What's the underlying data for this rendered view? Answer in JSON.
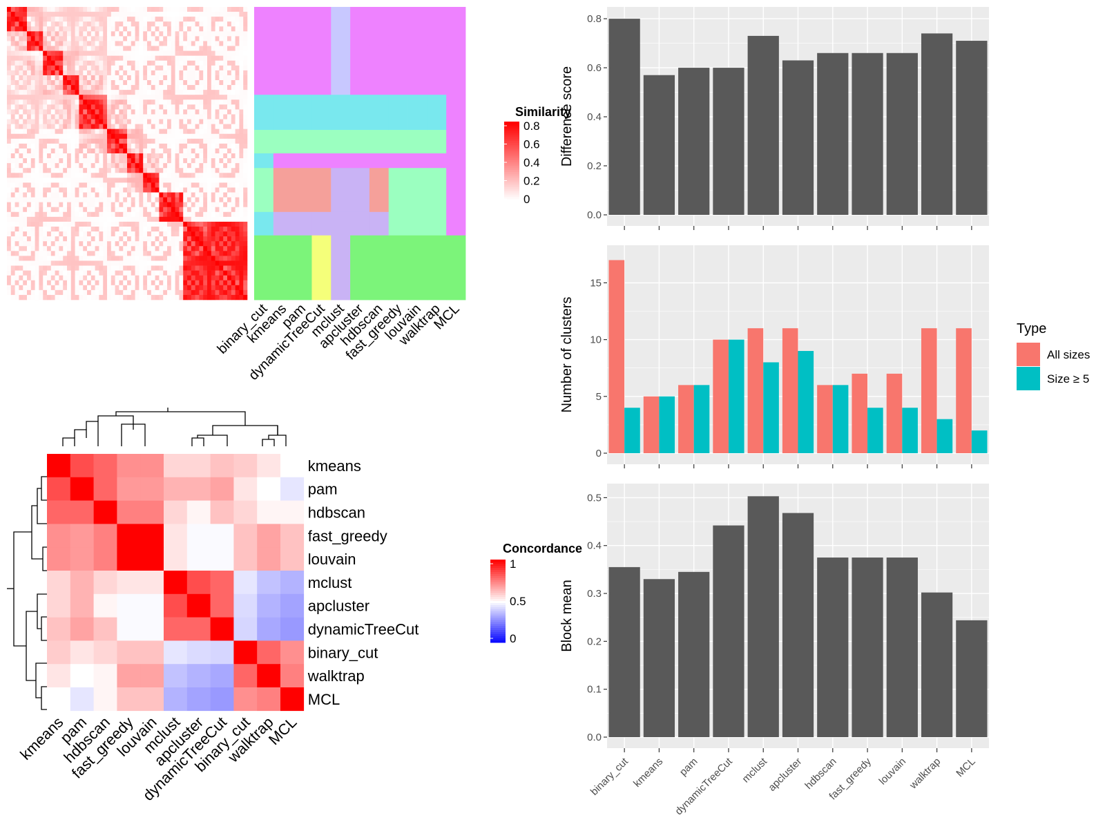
{
  "methods_top": [
    "binary_cut",
    "kmeans",
    "pam",
    "dynamicTreeCut",
    "mclust",
    "apcluster",
    "hdbscan",
    "fast_greedy",
    "louvain",
    "walktrap",
    "MCL"
  ],
  "similarity_legend": {
    "title": "Similarity",
    "ticks": [
      "0.8",
      "0.6",
      "0.4",
      "0.2",
      "0"
    ]
  },
  "concordance_heatmap": {
    "rows": [
      "kmeans",
      "pam",
      "hdbscan",
      "fast_greedy",
      "louvain",
      "mclust",
      "apcluster",
      "dynamicTreeCut",
      "binary_cut",
      "walktrap",
      "MCL"
    ],
    "values": [
      [
        1.0,
        0.85,
        0.8,
        0.72,
        0.72,
        0.58,
        0.58,
        0.62,
        0.6,
        0.55,
        0.5
      ],
      [
        0.85,
        1.0,
        0.8,
        0.7,
        0.7,
        0.65,
        0.65,
        0.68,
        0.55,
        0.5,
        0.45
      ],
      [
        0.8,
        0.8,
        1.0,
        0.75,
        0.75,
        0.58,
        0.52,
        0.62,
        0.58,
        0.52,
        0.52
      ],
      [
        0.72,
        0.7,
        0.75,
        1.0,
        1.0,
        0.55,
        0.49,
        0.49,
        0.62,
        0.68,
        0.62
      ],
      [
        0.72,
        0.7,
        0.75,
        1.0,
        1.0,
        0.55,
        0.49,
        0.49,
        0.62,
        0.68,
        0.62
      ],
      [
        0.58,
        0.65,
        0.58,
        0.55,
        0.55,
        1.0,
        0.85,
        0.8,
        0.45,
        0.38,
        0.35
      ],
      [
        0.58,
        0.65,
        0.52,
        0.49,
        0.49,
        0.85,
        1.0,
        0.8,
        0.43,
        0.35,
        0.32
      ],
      [
        0.62,
        0.68,
        0.62,
        0.49,
        0.49,
        0.8,
        0.8,
        1.0,
        0.42,
        0.33,
        0.3
      ],
      [
        0.6,
        0.55,
        0.58,
        0.62,
        0.62,
        0.45,
        0.43,
        0.42,
        1.0,
        0.8,
        0.72
      ],
      [
        0.55,
        0.5,
        0.52,
        0.68,
        0.68,
        0.38,
        0.35,
        0.33,
        0.8,
        1.0,
        0.75
      ],
      [
        0.5,
        0.45,
        0.52,
        0.62,
        0.62,
        0.35,
        0.32,
        0.3,
        0.72,
        0.75,
        1.0
      ]
    ]
  },
  "concordance_legend": {
    "title": "Concordance",
    "ticks": [
      "1",
      "0.5",
      "0"
    ]
  },
  "type_legend": {
    "title": "Type",
    "items": [
      "All sizes",
      "Size ≥ 5"
    ]
  },
  "colors": {
    "all_sizes": "#F8766D",
    "size_ge5": "#00BFC4",
    "bar": "#595959",
    "panel": "#EBEBEB"
  },
  "chart_data": [
    {
      "type": "bar",
      "categories": [
        "binary_cut",
        "kmeans",
        "pam",
        "dynamicTreeCut",
        "mclust",
        "apcluster",
        "hdbscan",
        "fast_greedy",
        "louvain",
        "walktrap",
        "MCL"
      ],
      "values": [
        0.8,
        0.57,
        0.6,
        0.6,
        0.73,
        0.63,
        0.66,
        0.66,
        0.66,
        0.74,
        0.71
      ],
      "ylabel": "Difference score",
      "ylim": [
        0,
        0.82
      ],
      "yticks": [
        "0.0",
        "0.2",
        "0.4",
        "0.6",
        "0.8"
      ]
    },
    {
      "type": "bar",
      "categories": [
        "binary_cut",
        "kmeans",
        "pam",
        "dynamicTreeCut",
        "mclust",
        "apcluster",
        "hdbscan",
        "fast_greedy",
        "louvain",
        "walktrap",
        "MCL"
      ],
      "series": [
        {
          "name": "All sizes",
          "values": [
            17,
            5,
            6,
            10,
            11,
            11,
            6,
            7,
            7,
            11,
            11
          ]
        },
        {
          "name": "Size ≥ 5",
          "values": [
            4,
            5,
            6,
            10,
            8,
            9,
            6,
            4,
            4,
            3,
            2
          ]
        }
      ],
      "ylabel": "Number of clusters",
      "ylim": [
        0,
        17.7
      ],
      "yticks": [
        "0",
        "5",
        "10",
        "15"
      ],
      "legend": "right"
    },
    {
      "type": "bar",
      "categories": [
        "binary_cut",
        "kmeans",
        "pam",
        "dynamicTreeCut",
        "mclust",
        "apcluster",
        "hdbscan",
        "fast_greedy",
        "louvain",
        "walktrap",
        "MCL"
      ],
      "values": [
        0.355,
        0.33,
        0.345,
        0.442,
        0.503,
        0.468,
        0.375,
        0.375,
        0.375,
        0.302,
        0.244
      ],
      "xlabels": [
        "binary_cut",
        "kmeans",
        "pam",
        "dynamicTreeCut",
        "mclust",
        "apcluster",
        "hdbscan",
        "fast_greedy",
        "louvain",
        "walktrap",
        "MCL"
      ],
      "ylabel": "Block mean",
      "ylim": [
        0,
        0.515
      ],
      "yticks": [
        "0.0",
        "0.1",
        "0.2",
        "0.3",
        "0.4",
        "0.5"
      ]
    }
  ]
}
